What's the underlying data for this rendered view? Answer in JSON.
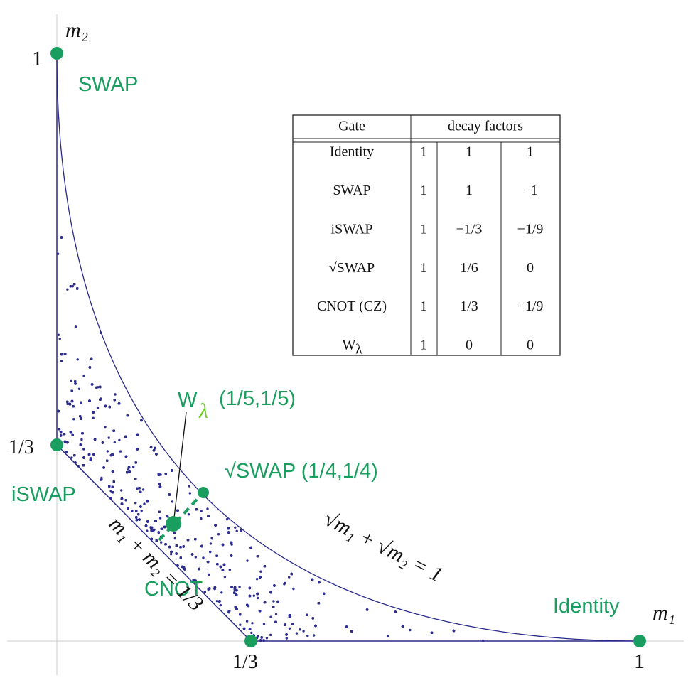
{
  "axes": {
    "x_label": "m₁",
    "y_label": "m₂",
    "x_ticks": [
      "1/3",
      "1"
    ],
    "y_ticks": [
      "1/3",
      "1"
    ]
  },
  "points": {
    "swap": "SWAP",
    "iswap": "iSWAP",
    "cnot": "CNOT",
    "identity": "Identity",
    "w_lambda": {
      "main": "W",
      "sub": "λ",
      "coords": "(1/5,1/5)"
    },
    "sqrt_swap": "√SWAP (1/4,1/4)"
  },
  "curves": {
    "line": "m₁ + m₂ = 1/3",
    "curve": "√m₁ + √m₂ = 1"
  },
  "table": {
    "header": [
      "Gate",
      "decay factors"
    ],
    "rows": [
      [
        "Identity",
        "1",
        "1",
        "1"
      ],
      [
        "SWAP",
        "1",
        "1",
        "−1"
      ],
      [
        "iSWAP",
        "1",
        "−1/3",
        "−1/9"
      ],
      [
        "√SWAP",
        "1",
        "1/6",
        "0"
      ],
      [
        "CNOT (CZ)",
        "1",
        "1/3",
        "−1/9"
      ],
      [
        {
          "main": "W",
          "sub": "λ"
        },
        "1",
        "0",
        "0"
      ]
    ]
  }
}
